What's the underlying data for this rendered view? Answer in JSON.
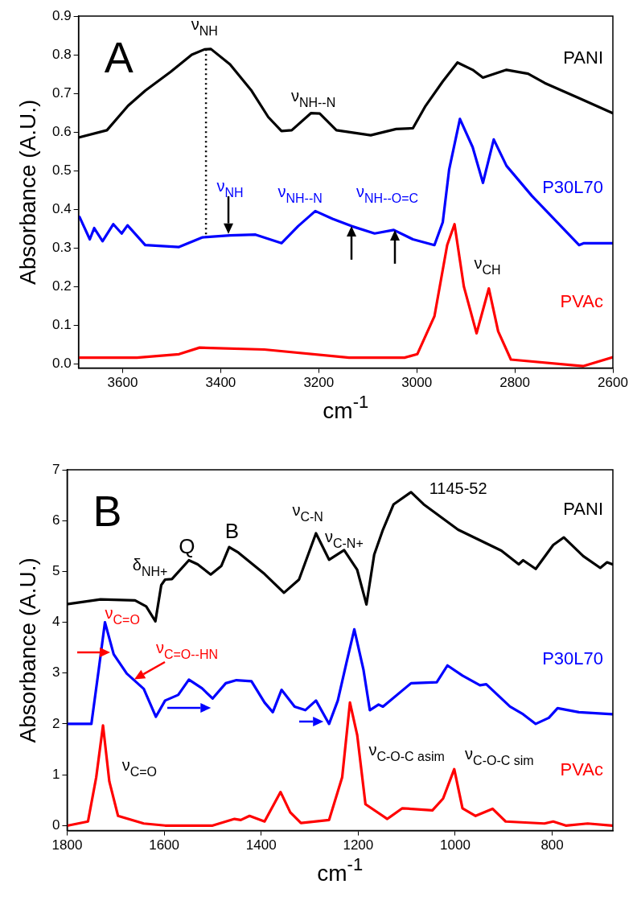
{
  "chart_data": [
    {
      "type": "line",
      "title": "A",
      "xlabel": "cm$^{-1}$",
      "ylabel": "Absorbance (A.U.)",
      "xlim": [
        3690,
        2600
      ],
      "xticks": [
        3600,
        3400,
        3200,
        3000,
        2800,
        2600
      ],
      "ylim": [
        -0.01,
        0.9
      ],
      "yticks": [
        {
          "value": 0,
          "label": "0.0"
        },
        0.1,
        0.2,
        0.3,
        0.4,
        0.5,
        0.6,
        0.7,
        0.8,
        0.9
      ],
      "grid": false,
      "legend": false,
      "marker": "none",
      "line_style": "solid",
      "series": [
        {
          "name": "PANI",
          "color": "#000000",
          "x": [
            3690,
            3632,
            3589,
            3554,
            3502,
            3459,
            3433,
            3420,
            3381,
            3337,
            3303,
            3276,
            3255,
            3216,
            3198,
            3164,
            3094,
            3042,
            3008,
            2982,
            2947,
            2917,
            2886,
            2865,
            2817,
            2773,
            2739,
            2669,
            2600
          ],
          "values": [
            0.586,
            0.605,
            0.668,
            0.707,
            0.756,
            0.8,
            0.814,
            0.815,
            0.775,
            0.707,
            0.639,
            0.603,
            0.605,
            0.649,
            0.648,
            0.605,
            0.592,
            0.608,
            0.61,
            0.668,
            0.731,
            0.78,
            0.761,
            0.741,
            0.761,
            0.751,
            0.727,
            0.688,
            0.649
          ]
        },
        {
          "name": "P30L70",
          "color": "#0000ff",
          "x": [
            3688,
            3667,
            3658,
            3641,
            3619,
            3602,
            3590,
            3554,
            3485,
            3437,
            3381,
            3329,
            3276,
            3242,
            3207,
            3172,
            3133,
            3086,
            3047,
            3008,
            2964,
            2947,
            2934,
            2912,
            2886,
            2865,
            2843,
            2817,
            2765,
            2669,
            2659,
            2600
          ],
          "values": [
            0.381,
            0.323,
            0.352,
            0.318,
            0.362,
            0.338,
            0.359,
            0.308,
            0.303,
            0.328,
            0.333,
            0.335,
            0.313,
            0.357,
            0.396,
            0.376,
            0.357,
            0.338,
            0.347,
            0.323,
            0.308,
            0.367,
            0.503,
            0.634,
            0.561,
            0.469,
            0.581,
            0.513,
            0.435,
            0.308,
            0.313,
            0.313
          ]
        },
        {
          "name": "PVAc",
          "color": "#ff0000",
          "x": [
            3688,
            3571,
            3485,
            3443,
            3311,
            3138,
            3025,
            2999,
            2964,
            2938,
            2923,
            2904,
            2878,
            2853,
            2834,
            2808,
            2661,
            2600
          ],
          "values": [
            0.017,
            0.017,
            0.026,
            0.043,
            0.038,
            0.017,
            0.017,
            0.026,
            0.124,
            0.308,
            0.362,
            0.201,
            0.08,
            0.196,
            0.085,
            0.012,
            -0.005,
            0.018
          ]
        }
      ],
      "ref_lines": [
        {
          "axis": "x",
          "value": 3430,
          "line_style": "dotted",
          "color": "#000000"
        }
      ],
      "annotations": [
        "ν$_{NH}$",
        "ν$_{NH--N}$",
        "ν$_{NH}$",
        "ν$_{NH--N}$",
        "ν$_{NH--O=C}$",
        "ν$_{CH}$"
      ]
    },
    {
      "type": "line",
      "title": "B",
      "xlabel": "cm$^{-1}$",
      "ylabel": "Absorbance (A.U.)",
      "xlim": [
        1800,
        675
      ],
      "xticks": [
        1800,
        1600,
        1400,
        1200,
        1000,
        800
      ],
      "ylim": [
        -0.1,
        7
      ],
      "yticks": [
        0,
        1,
        2,
        3,
        4,
        5,
        6,
        7
      ],
      "grid": false,
      "legend": false,
      "marker": "none",
      "line_style": "solid",
      "series": [
        {
          "name": "PANI",
          "color": "#000000",
          "x": [
            1798,
            1731,
            1660,
            1637,
            1618,
            1606,
            1598,
            1584,
            1549,
            1531,
            1504,
            1482,
            1466,
            1447,
            1393,
            1353,
            1322,
            1287,
            1260,
            1229,
            1202,
            1183,
            1167,
            1149,
            1127,
            1091,
            1065,
            994,
            905,
            869,
            860,
            834,
            798,
            776,
            736,
            701,
            687,
            676
          ],
          "values": [
            4.36,
            4.45,
            4.43,
            4.31,
            4.02,
            4.73,
            4.84,
            4.85,
            5.22,
            5.14,
            4.94,
            5.11,
            5.48,
            5.37,
            4.95,
            4.58,
            4.84,
            5.75,
            5.23,
            5.42,
            5.03,
            4.35,
            5.33,
            5.82,
            6.32,
            6.56,
            6.32,
            5.82,
            5.41,
            5.14,
            5.22,
            5.05,
            5.52,
            5.67,
            5.3,
            5.07,
            5.18,
            5.14
          ]
        },
        {
          "name": "P30L70",
          "color": "#0000ff",
          "x": [
            1798,
            1750,
            1735,
            1722,
            1704,
            1677,
            1642,
            1617,
            1598,
            1571,
            1549,
            1522,
            1500,
            1473,
            1451,
            1420,
            1393,
            1376,
            1358,
            1331,
            1309,
            1287,
            1260,
            1242,
            1224,
            1208,
            1189,
            1176,
            1158,
            1149,
            1091,
            1038,
            1016,
            985,
            949,
            936,
            887,
            860,
            834,
            807,
            789,
            745,
            676
          ],
          "values": [
            2.0,
            2.0,
            3.06,
            4.0,
            3.37,
            2.99,
            2.69,
            2.14,
            2.46,
            2.57,
            2.87,
            2.7,
            2.5,
            2.8,
            2.86,
            2.84,
            2.42,
            2.23,
            2.67,
            2.34,
            2.27,
            2.46,
            2.0,
            2.46,
            3.21,
            3.86,
            3.06,
            2.27,
            2.38,
            2.34,
            2.8,
            2.82,
            3.15,
            2.95,
            2.76,
            2.78,
            2.34,
            2.19,
            2.0,
            2.12,
            2.31,
            2.23,
            2.19
          ]
        },
        {
          "name": "PVAc",
          "color": "#ff0000",
          "x": [
            1798,
            1757,
            1740,
            1726,
            1713,
            1695,
            1642,
            1598,
            1500,
            1455,
            1442,
            1424,
            1393,
            1360,
            1340,
            1318,
            1260,
            1233,
            1217,
            1202,
            1185,
            1140,
            1109,
            1047,
            1025,
            1002,
            985,
            958,
            923,
            896,
            816,
            798,
            772,
            727,
            676
          ],
          "values": [
            0.0,
            0.08,
            0.95,
            1.97,
            0.87,
            0.19,
            0.04,
            0.0,
            0.0,
            0.13,
            0.11,
            0.19,
            0.08,
            0.66,
            0.26,
            0.05,
            0.11,
            0.95,
            2.42,
            1.78,
            0.42,
            0.13,
            0.34,
            0.3,
            0.53,
            1.11,
            0.34,
            0.19,
            0.33,
            0.08,
            0.04,
            0.08,
            0.0,
            0.04,
            0.0
          ]
        }
      ],
      "annotations": [
        "δ$_{NH+}$",
        "Q",
        "B",
        "ν$_{C-N}$",
        "ν$_{C-N+}$",
        "1145-52",
        "ν$_{C=O}$",
        "ν$_{C=O--HN}$",
        "ν$_{C=O}$",
        "ν$_{C-O-C asim}$",
        "ν$_{C-O-C sim}$"
      ]
    }
  ]
}
